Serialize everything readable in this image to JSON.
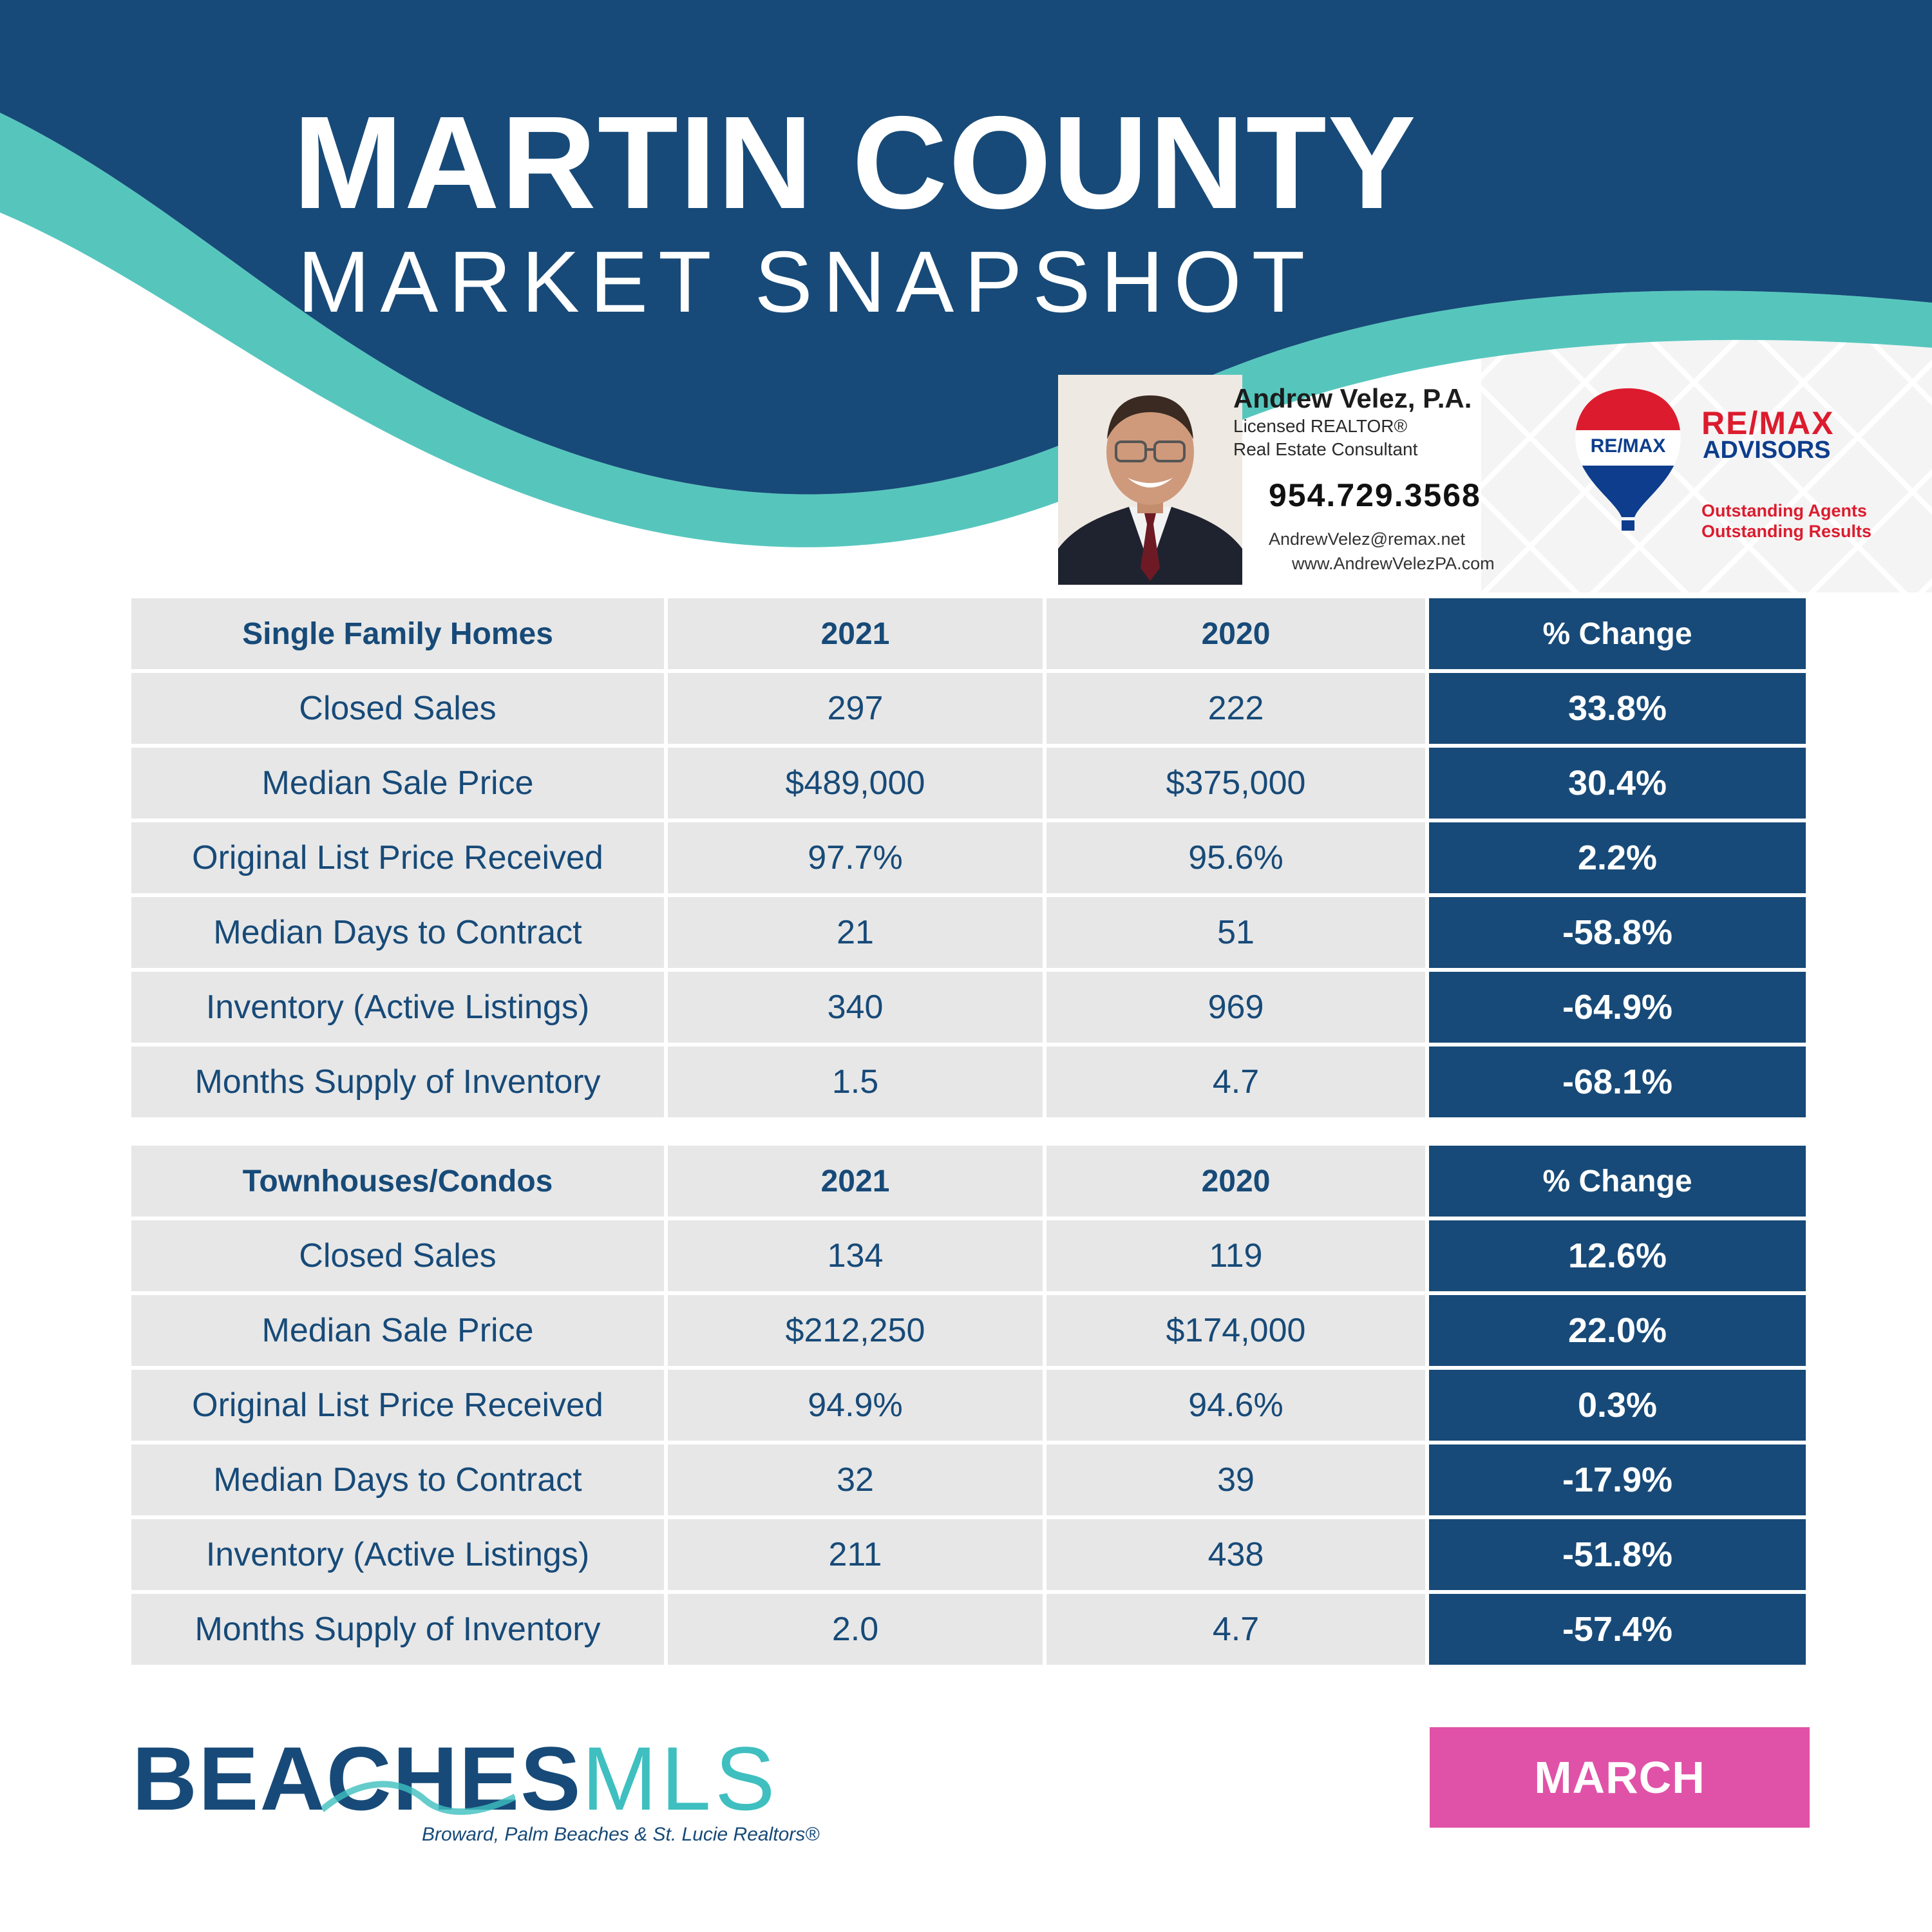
{
  "header": {
    "title": "MARTIN COUNTY",
    "subtitle": "MARKET SNAPSHOT"
  },
  "agent": {
    "name": "Andrew Velez, P.A.",
    "license": "Licensed REALTOR®",
    "role": "Real Estate Consultant",
    "phone": "954.729.3568",
    "email": "AndrewVelez@remax.net",
    "website": "www.AndrewVelezPA.com"
  },
  "brokerage": {
    "balloon_text": "RE/MAX",
    "name": "RE/MAX",
    "office": "ADVISORS",
    "tagline_1": "Outstanding Agents",
    "tagline_2": "Outstanding Results",
    "colors": {
      "red": "#dc1c2e",
      "blue": "#0d3d8c"
    }
  },
  "tables": [
    {
      "header": [
        "Single Family Homes",
        "2021",
        "2020",
        "% Change"
      ],
      "rows": [
        [
          "Closed Sales",
          "297",
          "222",
          "33.8%"
        ],
        [
          "Median Sale Price",
          "$489,000",
          "$375,000",
          "30.4%"
        ],
        [
          "Original List Price Received",
          "97.7%",
          "95.6%",
          "2.2%"
        ],
        [
          "Median Days to Contract",
          "21",
          "51",
          "-58.8%"
        ],
        [
          "Inventory (Active Listings)",
          "340",
          "969",
          "-64.9%"
        ],
        [
          "Months Supply of Inventory",
          "1.5",
          "4.7",
          "-68.1%"
        ]
      ]
    },
    {
      "header": [
        "Townhouses/Condos",
        "2021",
        "2020",
        "% Change"
      ],
      "rows": [
        [
          "Closed Sales",
          "134",
          "119",
          "12.6%"
        ],
        [
          "Median Sale Price",
          "$212,250",
          "$174,000",
          "22.0%"
        ],
        [
          "Original List Price Received",
          "94.9%",
          "94.6%",
          "0.3%"
        ],
        [
          "Median Days to Contract",
          "32",
          "39",
          "-17.9%"
        ],
        [
          "Inventory (Active Listings)",
          "211",
          "438",
          "-51.8%"
        ],
        [
          "Months Supply of Inventory",
          "2.0",
          "4.7",
          "-57.4%"
        ]
      ]
    }
  ],
  "footer": {
    "logo_bold": "BEACHES",
    "logo_light": "MLS",
    "logo_tagline": "Broward, Palm Beaches & St. Lucie Realtors®",
    "month": "MARCH"
  },
  "colors": {
    "navy": "#174a78",
    "teal": "#56c6bd",
    "cell_gray": "#e7e7e7",
    "month_pink": "#e052a8"
  }
}
